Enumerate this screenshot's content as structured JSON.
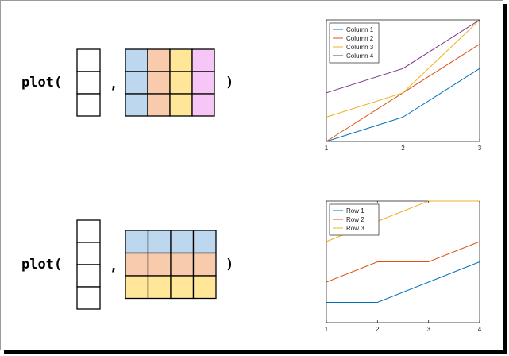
{
  "rows": [
    {
      "code": {
        "call": "plot(",
        "comma": ",",
        "close": ")"
      },
      "x_cells": 3,
      "y_matrix": {
        "rows": 3,
        "cols": 4,
        "orientation": "columns",
        "fills": [
          "#bdd7ee",
          "#f8cbad",
          "#ffe699",
          "#f6c7f6"
        ]
      }
    },
    {
      "code": {
        "call": "plot(",
        "comma": ",",
        "close": ")"
      },
      "x_cells": 4,
      "y_matrix": {
        "rows": 3,
        "cols": 4,
        "orientation": "rows",
        "fills": [
          "#bdd7ee",
          "#f8cbad",
          "#ffe699"
        ]
      }
    }
  ],
  "chart_data": [
    {
      "type": "line",
      "x": [
        1,
        2,
        3
      ],
      "xlim": [
        1,
        3
      ],
      "ylim": [
        1,
        6
      ],
      "xticks": [
        "1",
        "2",
        "3"
      ],
      "grid": false,
      "legend_position": "top-left",
      "series": [
        {
          "name": "Column 1",
          "color": "#0072bd",
          "values": [
            1,
            2,
            4
          ]
        },
        {
          "name": "Column 2",
          "color": "#d95319",
          "values": [
            1,
            3,
            5
          ]
        },
        {
          "name": "Column 3",
          "color": "#edb120",
          "values": [
            2,
            3,
            6
          ]
        },
        {
          "name": "Column 4",
          "color": "#7e2f8e",
          "values": [
            3,
            4,
            6
          ]
        }
      ]
    },
    {
      "type": "line",
      "x": [
        1,
        2,
        3,
        4
      ],
      "xlim": [
        1,
        4
      ],
      "ylim": [
        1,
        7
      ],
      "xticks": [
        "1",
        "2",
        "3",
        "4"
      ],
      "grid": false,
      "legend_position": "top-left",
      "series": [
        {
          "name": "Row 1",
          "color": "#0072bd",
          "values": [
            2,
            2,
            3,
            4
          ]
        },
        {
          "name": "Row 2",
          "color": "#d95319",
          "values": [
            3,
            4,
            4,
            5
          ]
        },
        {
          "name": "Row 3",
          "color": "#edb120",
          "values": [
            5,
            6,
            7,
            7
          ]
        }
      ]
    }
  ]
}
